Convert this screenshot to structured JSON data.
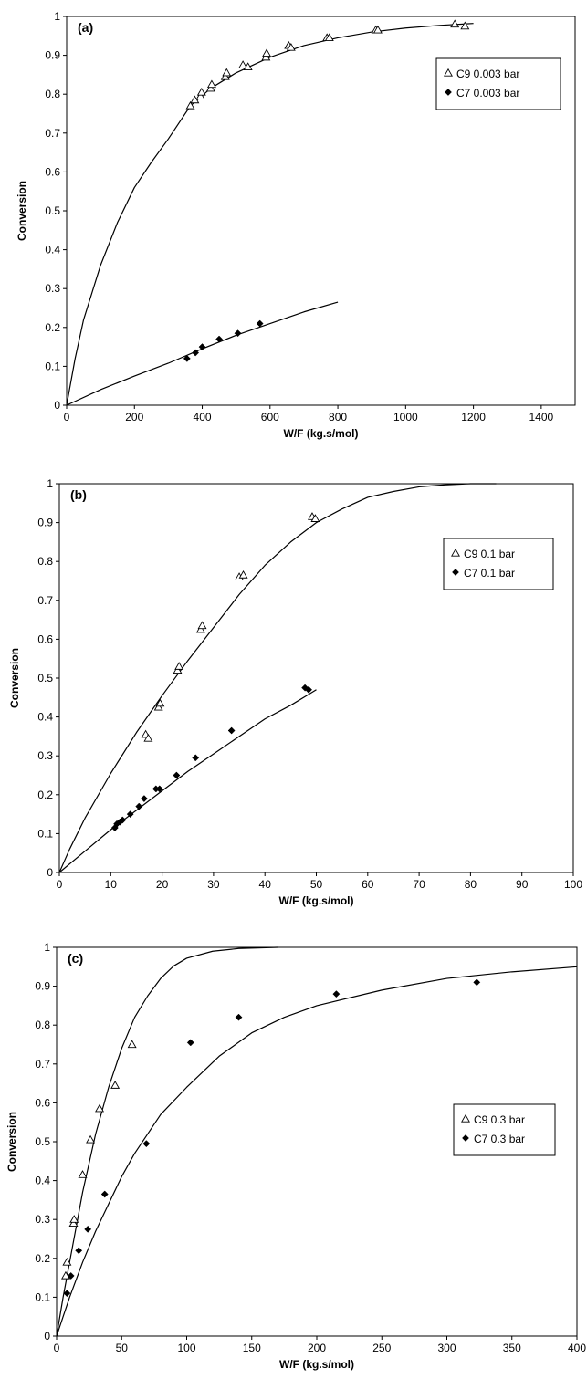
{
  "colors": {
    "axis": "#000000",
    "model_line": "#000000",
    "open_marker": "#ffffff",
    "filled_marker": "#000000"
  },
  "chart_data": [
    {
      "type": "scatter",
      "panel_label": "(a)",
      "xlabel": "W/F (kg.s/mol)",
      "ylabel": "Conversion",
      "xlim": [
        0,
        1500
      ],
      "ylim": [
        0,
        1
      ],
      "xticks": [
        "0",
        "200",
        "400",
        "600",
        "800",
        "1000",
        "1200",
        "1400"
      ],
      "yticks": [
        "0",
        "0.1",
        "0.2",
        "0.3",
        "0.4",
        "0.5",
        "0.6",
        "0.7",
        "0.8",
        "0.9",
        "1"
      ],
      "grid": false,
      "legend_position": "top-right",
      "series": [
        {
          "name": "C9 0.003 bar",
          "marker": "open-triangle",
          "points": [
            [
              365,
              0.77
            ],
            [
              378,
              0.785
            ],
            [
              395,
              0.795
            ],
            [
              398,
              0.805
            ],
            [
              425,
              0.815
            ],
            [
              428,
              0.825
            ],
            [
              468,
              0.845
            ],
            [
              472,
              0.855
            ],
            [
              520,
              0.875
            ],
            [
              535,
              0.87
            ],
            [
              588,
              0.895
            ],
            [
              590,
              0.905
            ],
            [
              655,
              0.925
            ],
            [
              662,
              0.92
            ],
            [
              768,
              0.945
            ],
            [
              775,
              0.945
            ],
            [
              912,
              0.965
            ],
            [
              918,
              0.965
            ],
            [
              1145,
              0.98
            ],
            [
              1175,
              0.975
            ]
          ],
          "fit": [
            [
              0,
              0
            ],
            [
              25,
              0.12
            ],
            [
              50,
              0.22
            ],
            [
              100,
              0.36
            ],
            [
              150,
              0.47
            ],
            [
              200,
              0.56
            ],
            [
              250,
              0.625
            ],
            [
              300,
              0.685
            ],
            [
              365,
              0.77
            ],
            [
              425,
              0.815
            ],
            [
              500,
              0.855
            ],
            [
              600,
              0.895
            ],
            [
              700,
              0.925
            ],
            [
              800,
              0.945
            ],
            [
              900,
              0.96
            ],
            [
              1000,
              0.97
            ],
            [
              1100,
              0.977
            ],
            [
              1200,
              0.982
            ]
          ]
        },
        {
          "name": "C7 0.003 bar",
          "marker": "filled-diamond",
          "points": [
            [
              355,
              0.12
            ],
            [
              380,
              0.135
            ],
            [
              400,
              0.15
            ],
            [
              450,
              0.17
            ],
            [
              505,
              0.185
            ],
            [
              570,
              0.21
            ]
          ],
          "fit": [
            [
              0,
              0
            ],
            [
              100,
              0.04
            ],
            [
              200,
              0.075
            ],
            [
              300,
              0.108
            ],
            [
              400,
              0.145
            ],
            [
              500,
              0.18
            ],
            [
              600,
              0.21
            ],
            [
              700,
              0.24
            ],
            [
              800,
              0.265
            ]
          ]
        }
      ]
    },
    {
      "type": "scatter",
      "panel_label": "(b)",
      "xlabel": "W/F (kg.s/mol)",
      "ylabel": "Conversion",
      "xlim": [
        0,
        100
      ],
      "ylim": [
        0,
        1
      ],
      "xticks": [
        "0",
        "10",
        "20",
        "30",
        "40",
        "50",
        "60",
        "70",
        "80",
        "90",
        "100"
      ],
      "yticks": [
        "0",
        "0.1",
        "0.2",
        "0.3",
        "0.4",
        "0.5",
        "0.6",
        "0.7",
        "0.8",
        "0.9",
        "1"
      ],
      "grid": false,
      "legend_position": "top-right",
      "series": [
        {
          "name": "C9 0.1 bar",
          "marker": "open-triangle",
          "points": [
            [
              16.8,
              0.355
            ],
            [
              17.3,
              0.345
            ],
            [
              19.3,
              0.425
            ],
            [
              19.6,
              0.435
            ],
            [
              23,
              0.52
            ],
            [
              23.3,
              0.53
            ],
            [
              27.5,
              0.625
            ],
            [
              27.8,
              0.635
            ],
            [
              35,
              0.76
            ],
            [
              35.8,
              0.765
            ],
            [
              49.2,
              0.915
            ],
            [
              49.8,
              0.91
            ]
          ],
          "fit": [
            [
              0,
              0
            ],
            [
              2,
              0.06
            ],
            [
              5,
              0.14
            ],
            [
              10,
              0.255
            ],
            [
              15,
              0.36
            ],
            [
              20,
              0.455
            ],
            [
              25,
              0.545
            ],
            [
              30,
              0.63
            ],
            [
              35,
              0.715
            ],
            [
              40,
              0.79
            ],
            [
              45,
              0.85
            ],
            [
              50,
              0.9
            ],
            [
              55,
              0.935
            ],
            [
              60,
              0.965
            ],
            [
              65,
              0.98
            ],
            [
              70,
              0.992
            ],
            [
              75,
              0.997
            ],
            [
              80,
              1.0
            ],
            [
              85,
              1.0
            ]
          ]
        },
        {
          "name": "C7 0.1 bar",
          "marker": "filled-diamond",
          "points": [
            [
              10.8,
              0.115
            ],
            [
              11.2,
              0.125
            ],
            [
              11.8,
              0.13
            ],
            [
              12.3,
              0.135
            ],
            [
              13.8,
              0.15
            ],
            [
              15.5,
              0.17
            ],
            [
              16.5,
              0.19
            ],
            [
              18.8,
              0.215
            ],
            [
              19.5,
              0.215
            ],
            [
              22.8,
              0.25
            ],
            [
              26.5,
              0.295
            ],
            [
              33.5,
              0.365
            ],
            [
              47.8,
              0.475
            ],
            [
              48.5,
              0.47
            ]
          ],
          "fit": [
            [
              0,
              0
            ],
            [
              5,
              0.055
            ],
            [
              10,
              0.11
            ],
            [
              15,
              0.16
            ],
            [
              20,
              0.21
            ],
            [
              25,
              0.26
            ],
            [
              30,
              0.305
            ],
            [
              35,
              0.35
            ],
            [
              40,
              0.395
            ],
            [
              45,
              0.43
            ],
            [
              50,
              0.47
            ]
          ]
        }
      ]
    },
    {
      "type": "scatter",
      "panel_label": "(c)",
      "xlabel": "W/F (kg.s/mol)",
      "ylabel": "Conversion",
      "xlim": [
        0,
        400
      ],
      "ylim": [
        0,
        1
      ],
      "xticks": [
        "0",
        "50",
        "100",
        "150",
        "200",
        "250",
        "300",
        "350",
        "400"
      ],
      "yticks": [
        "0",
        "0.1",
        "0.2",
        "0.3",
        "0.4",
        "0.5",
        "0.6",
        "0.7",
        "0.8",
        "0.9",
        "1"
      ],
      "grid": false,
      "legend_position": "right",
      "series": [
        {
          "name": "C9 0.3 bar",
          "marker": "open-triangle",
          "points": [
            [
              7,
              0.155
            ],
            [
              8,
              0.19
            ],
            [
              13,
              0.29
            ],
            [
              13.5,
              0.3
            ],
            [
              20,
              0.415
            ],
            [
              26,
              0.505
            ],
            [
              33,
              0.585
            ],
            [
              45,
              0.645
            ],
            [
              58,
              0.75
            ]
          ],
          "fit": [
            [
              0,
              0
            ],
            [
              5,
              0.1
            ],
            [
              10,
              0.19
            ],
            [
              20,
              0.37
            ],
            [
              30,
              0.52
            ],
            [
              40,
              0.64
            ],
            [
              50,
              0.74
            ],
            [
              60,
              0.82
            ],
            [
              70,
              0.875
            ],
            [
              80,
              0.92
            ],
            [
              90,
              0.952
            ],
            [
              100,
              0.972
            ],
            [
              120,
              0.99
            ],
            [
              140,
              0.997
            ],
            [
              170,
              1.0
            ]
          ]
        },
        {
          "name": "C7 0.3 bar",
          "marker": "filled-diamond",
          "points": [
            [
              8,
              0.11
            ],
            [
              11,
              0.155
            ],
            [
              17,
              0.22
            ],
            [
              24,
              0.275
            ],
            [
              37,
              0.365
            ],
            [
              69,
              0.495
            ],
            [
              103,
              0.755
            ],
            [
              140,
              0.82
            ],
            [
              215,
              0.88
            ],
            [
              323,
              0.91
            ]
          ],
          "fit": [
            [
              0,
              0
            ],
            [
              5,
              0.05
            ],
            [
              10,
              0.1
            ],
            [
              20,
              0.19
            ],
            [
              30,
              0.27
            ],
            [
              40,
              0.34
            ],
            [
              50,
              0.41
            ],
            [
              60,
              0.47
            ],
            [
              80,
              0.57
            ],
            [
              100,
              0.64
            ],
            [
              125,
              0.72
            ],
            [
              150,
              0.78
            ],
            [
              175,
              0.82
            ],
            [
              200,
              0.85
            ],
            [
              250,
              0.89
            ],
            [
              300,
              0.92
            ],
            [
              350,
              0.937
            ],
            [
              400,
              0.95
            ]
          ]
        }
      ]
    }
  ]
}
